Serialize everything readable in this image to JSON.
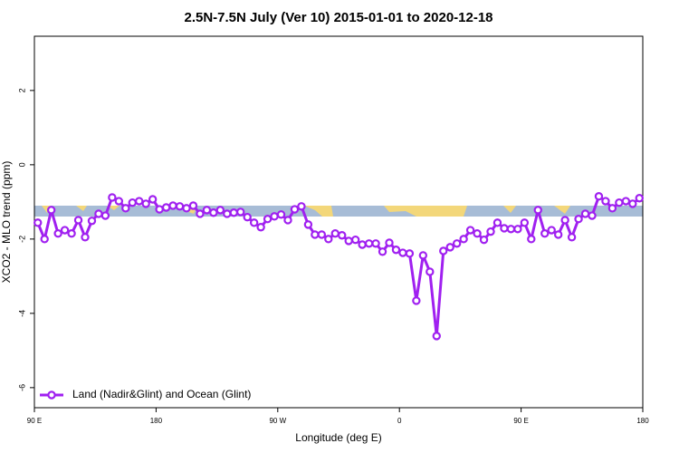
{
  "chart_data": {
    "type": "line",
    "title": "2.5N-7.5N July (Ver 10)   2015-01-01 to 2020-12-18",
    "xlabel": "Longitude (deg E)",
    "ylabel": "XCO2 - MLO trend (ppm)",
    "x": [
      92.5,
      97.5,
      102.5,
      107.5,
      112.5,
      117.5,
      122.5,
      127.5,
      132.5,
      137.5,
      142.5,
      147.5,
      152.5,
      157.5,
      162.5,
      167.5,
      172.5,
      177.5,
      182.5,
      187.5,
      192.5,
      197.5,
      202.5,
      207.5,
      212.5,
      217.5,
      222.5,
      227.5,
      232.5,
      237.5,
      242.5,
      247.5,
      252.5,
      257.5,
      262.5,
      267.5,
      272.5,
      277.5,
      282.5,
      287.5,
      292.5,
      297.5,
      302.5,
      307.5,
      312.5,
      317.5,
      322.5,
      327.5,
      332.5,
      337.5,
      342.5,
      347.5,
      352.5,
      357.5,
      362.5,
      367.5,
      372.5,
      377.5,
      382.5,
      387.5,
      392.5,
      397.5,
      402.5,
      407.5,
      412.5,
      417.5,
      422.5,
      427.5,
      432.5,
      437.5,
      442.5,
      447.5,
      452.5,
      457.5,
      462.5,
      467.5,
      472.5,
      477.5,
      482.5,
      487.5,
      492.5,
      497.5,
      502.5,
      507.5,
      512.5,
      517.5,
      522.5,
      527.5,
      532.5,
      537.5
    ],
    "series": [
      {
        "name": "Land (Nadir&Glint) and Ocean (Glint)",
        "color": "#a020f0",
        "values": [
          -1.56,
          -2.0,
          -1.22,
          -1.85,
          -1.76,
          -1.85,
          -1.49,
          -1.95,
          -1.51,
          -1.32,
          -1.37,
          -0.88,
          -0.98,
          -1.17,
          -1.02,
          -0.98,
          -1.05,
          -0.93,
          -1.2,
          -1.15,
          -1.1,
          -1.12,
          -1.17,
          -1.1,
          -1.32,
          -1.22,
          -1.29,
          -1.22,
          -1.32,
          -1.29,
          -1.27,
          -1.41,
          -1.56,
          -1.68,
          -1.46,
          -1.39,
          -1.34,
          -1.49,
          -1.2,
          -1.12,
          -1.61,
          -1.88,
          -1.88,
          -2.0,
          -1.85,
          -1.9,
          -2.05,
          -2.02,
          -2.15,
          -2.12,
          -2.12,
          -2.34,
          -2.1,
          -2.29,
          -2.37,
          -2.39,
          -3.66,
          -2.44,
          -2.88,
          -4.61,
          -2.32,
          -2.22,
          -2.12,
          -2.0,
          -1.76,
          -1.85,
          -2.02,
          -1.8,
          -1.56,
          -1.71,
          -1.73,
          -1.73,
          -1.56,
          -2.0,
          -1.22,
          -1.85,
          -1.76,
          -1.88,
          -1.49,
          -1.95,
          -1.46,
          -1.32,
          -1.37,
          -0.85,
          -0.98,
          -1.17,
          -1.02,
          -0.98,
          -1.05,
          -0.9
        ]
      }
    ],
    "xlim": [
      90,
      540
    ],
    "xticks": [
      {
        "value": 90,
        "label": "90 E"
      },
      180,
      {
        "value": 270,
        "label": "90 W"
      },
      {
        "value": 360,
        "label": "0"
      },
      {
        "value": 450,
        "label": "90 E"
      },
      {
        "value": 540,
        "label": "180"
      }
    ],
    "ylim": [
      -6.54,
      3.46
    ],
    "yticks": [
      -6,
      -4,
      -2,
      0,
      2
    ],
    "grid": false,
    "legend": "lower left"
  }
}
